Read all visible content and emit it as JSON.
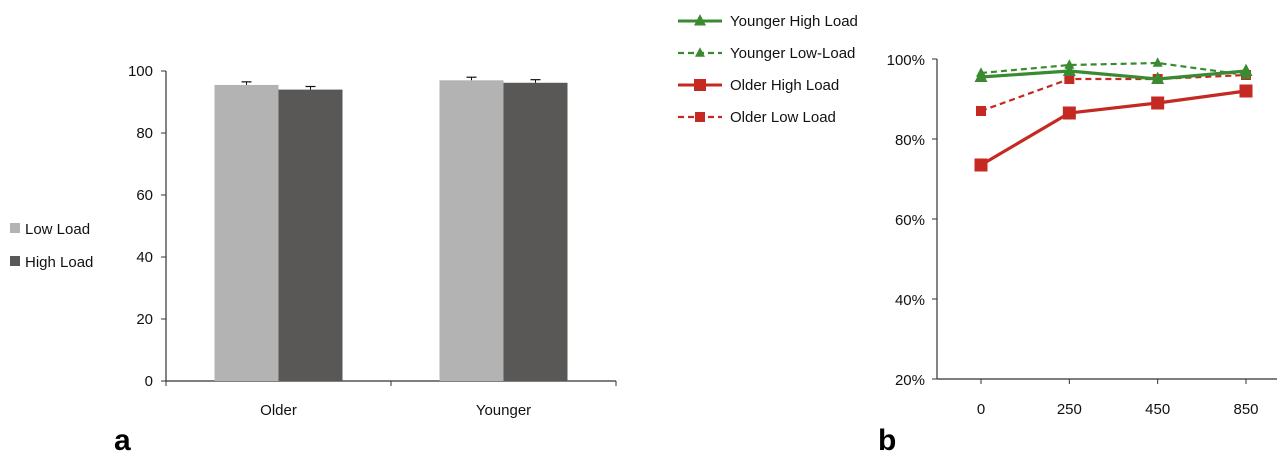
{
  "chart_data": [
    {
      "type": "bar",
      "panel_label": "a",
      "categories": [
        "Older",
        "Younger"
      ],
      "series": [
        {
          "name": "Low Load",
          "color": "#b3b3b3",
          "values": [
            95.5,
            97.0
          ],
          "error": [
            1.0,
            1.0
          ]
        },
        {
          "name": "High Load",
          "color": "#5a5857",
          "values": [
            94.0,
            96.2
          ],
          "error": [
            1.0,
            1.0
          ]
        }
      ],
      "ylim": [
        0,
        100
      ],
      "yticks": [
        0,
        20,
        40,
        60,
        80,
        100
      ],
      "ytick_labels": [
        "0",
        "20",
        "40",
        "60",
        "80",
        "100"
      ],
      "grid": false,
      "legend_position": "left"
    },
    {
      "type": "line",
      "panel_label": "b",
      "categories": [
        "0",
        "250",
        "450",
        "850"
      ],
      "series": [
        {
          "name": "Younger High Load",
          "color": "#3a8a31",
          "dashed": false,
          "marker": "triangle",
          "values": [
            95.5,
            97.0,
            95.0,
            97.0
          ]
        },
        {
          "name": "Younger Low-Load",
          "color": "#3a8a31",
          "dashed": true,
          "marker": "triangle",
          "values": [
            96.5,
            98.5,
            99.0,
            96.0
          ]
        },
        {
          "name": "Older High Load",
          "color": "#c42a22",
          "dashed": false,
          "marker": "square",
          "values": [
            73.5,
            86.5,
            89.0,
            92.0
          ]
        },
        {
          "name": "Older Low Load",
          "color": "#c42a22",
          "dashed": true,
          "marker": "square",
          "values": [
            87.0,
            95.0,
            95.0,
            96.0
          ]
        }
      ],
      "ylim": [
        20,
        100
      ],
      "yticks": [
        20,
        40,
        60,
        80,
        100
      ],
      "ytick_labels": [
        "20%",
        "40%",
        "60%",
        "80%",
        "100%"
      ],
      "grid": false,
      "legend_position": "top-left"
    }
  ]
}
